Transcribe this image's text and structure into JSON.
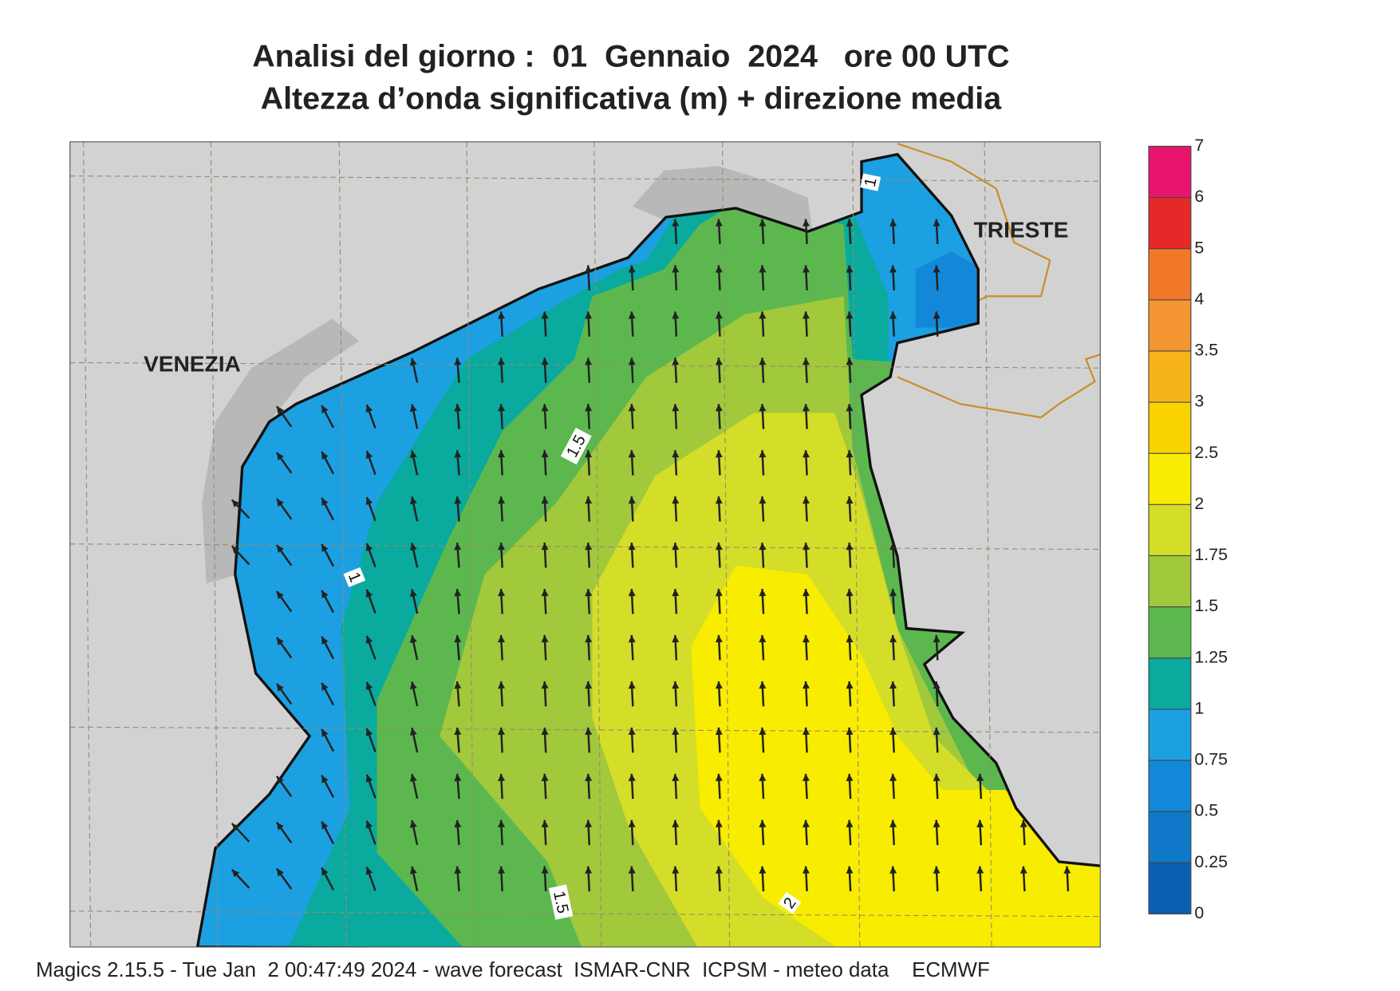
{
  "header": {
    "title_line1": "Analisi del giorno :  01  Gennaio  2024   ore 00 UTC",
    "title_line2": "Altezza d’onda significativa (m) + direzione media"
  },
  "map": {
    "place_labels": [
      "VENEZIA",
      "TRIESTE"
    ],
    "contour_labels": [
      "1.5",
      "1",
      "1.5",
      "2",
      "1"
    ]
  },
  "legend": {
    "levels": [
      0,
      0.25,
      0.5,
      0.75,
      1,
      1.25,
      1.5,
      1.75,
      2,
      2.5,
      3,
      3.5,
      4,
      5,
      6,
      7
    ],
    "colors": [
      "#0a5fb4",
      "#0f78c8",
      "#1488d8",
      "#1ca0e2",
      "#0aaa9e",
      "#5cb84e",
      "#a2c83c",
      "#d4de28",
      "#f8ec00",
      "#fad200",
      "#f7b41a",
      "#f59632",
      "#f07828",
      "#e62828",
      "#e8146e"
    ]
  },
  "footer": "Magics 2.15.5 - Tue Jan  2 00:47:49 2024 - wave forecast  ISMAR-CNR  ICPSM - meteo data    ECMWF"
}
